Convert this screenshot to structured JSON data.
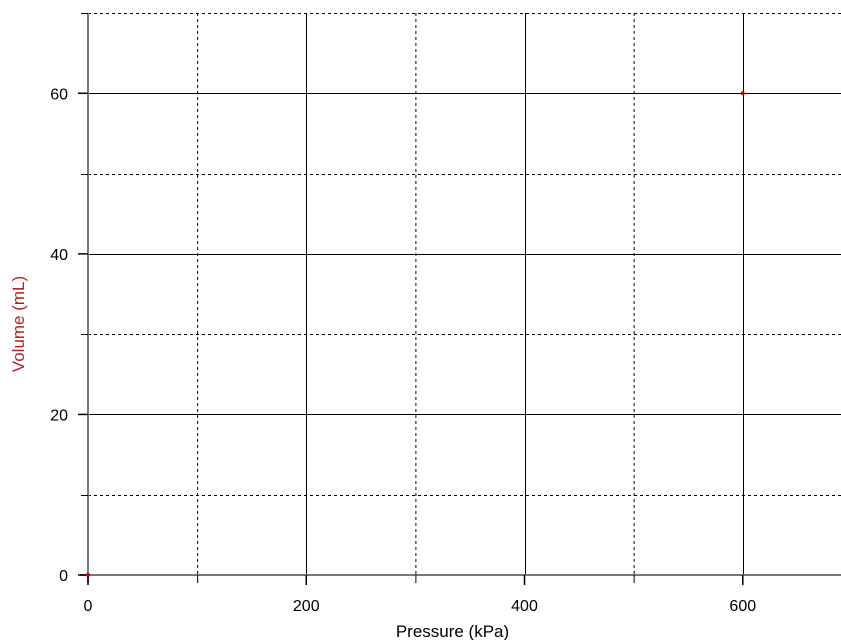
{
  "chart_data": {
    "type": "scatter",
    "title": "",
    "xlabel": "Pressure (kPa)",
    "ylabel": "Volume (mL)",
    "xlim": [
      0,
      690
    ],
    "ylim": [
      0,
      70
    ],
    "x_major_ticks": [
      0,
      200,
      400,
      600
    ],
    "x_minor_ticks": [
      100,
      300,
      500
    ],
    "y_major_ticks": [
      0,
      20,
      40,
      60
    ],
    "y_minor_ticks": [
      10,
      30,
      50,
      70
    ],
    "x_tick_labels": [
      "0",
      "200",
      "400",
      "600"
    ],
    "y_tick_labels": [
      "0",
      "20",
      "40",
      "60"
    ],
    "grid": true,
    "grid_style": "solid at major ticks, dashed at minor ticks",
    "series": [
      {
        "x": [
          0,
          600
        ],
        "y": [
          0,
          60
        ],
        "color": "#cc0000"
      }
    ],
    "colors": {
      "ylabel": "#b22222",
      "xlabel": "#000000",
      "point": "#cc0000"
    }
  }
}
